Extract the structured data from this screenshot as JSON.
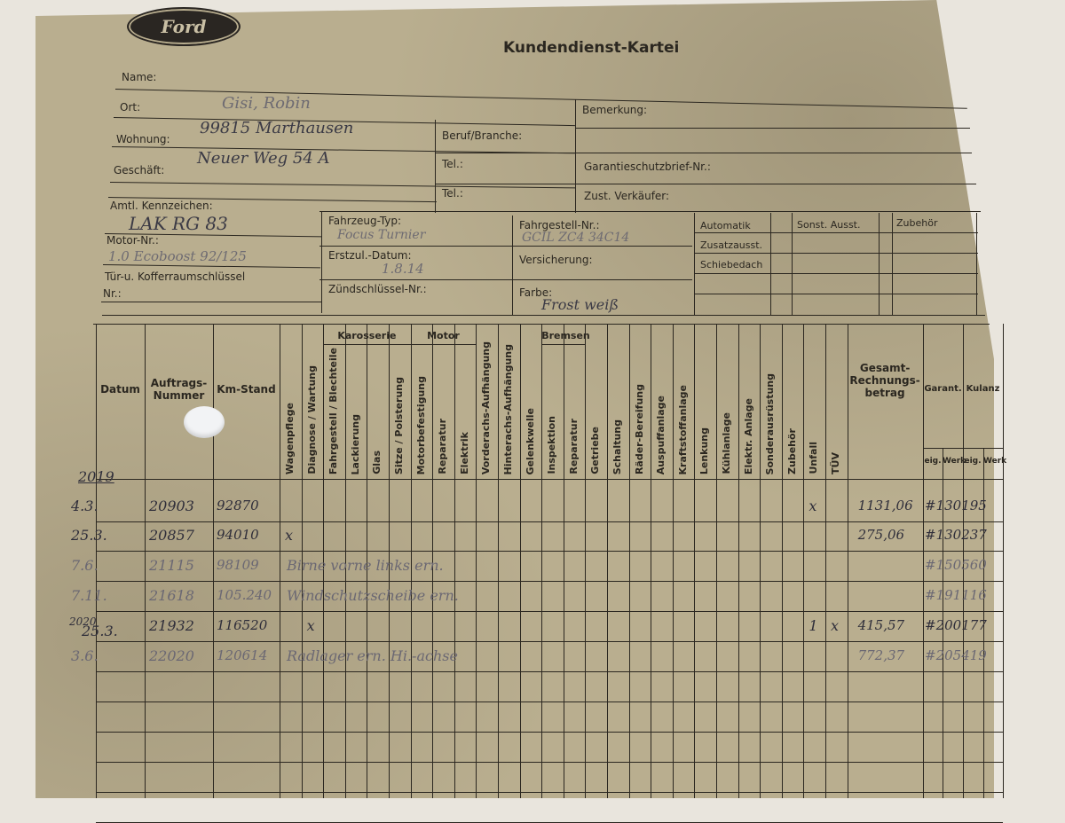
{
  "form": {
    "brand": "Ford",
    "title": "Kundendienst-Kartei",
    "labels": {
      "name": "Name:",
      "ort": "Ort:",
      "wohnung": "Wohnung:",
      "geschaeft": "Geschäft:",
      "beruf": "Beruf/Branche:",
      "tel1": "Tel.:",
      "tel2": "Tel.:",
      "bemerkung": "Bemerkung:",
      "garantie": "Garantieschutzbrief-Nr.:",
      "verkaeufer": "Zust. Verkäufer:",
      "kennzeichen": "Amtl. Kennzeichen:",
      "motor": "Motor-Nr.:",
      "schluessel": "Tür-u. Kofferraumschlüssel",
      "schluessel_nr": "Nr.:",
      "typ": "Fahrzeug-Typ:",
      "erstzul": "Erstzul.-Datum:",
      "zuend": "Zündschlüssel-Nr.:",
      "fahrgestell": "Fahrgestell-Nr.:",
      "versicherung": "Versicherung:",
      "farbe": "Farbe:",
      "automatik": "Automatik",
      "zusatz": "Zusatzausst.",
      "schiebedach": "Schiebedach",
      "sonst": "Sonst. Ausst.",
      "zubehoer": "Zubehör"
    },
    "values": {
      "name": "Gisi, Robin",
      "ort": "99815 Marthausen",
      "wohnung": "Neuer Weg 54 A",
      "kennzeichen": "LAK RG 83",
      "motor": "1.0 Ecoboost 92/125",
      "typ": "Focus Turnier",
      "erstzul": "1.8.14",
      "fahrgestell": "GCIL ZC4 34C14",
      "farbe": "Frost weiß"
    }
  },
  "table": {
    "headers": {
      "datum": "Datum",
      "auftrag": "Auftrags-Nummer",
      "km": "Km-Stand",
      "gesamt": "Gesamt-Rechnungs-betrag",
      "garant": "Garant.",
      "kulanz": "Kulanz",
      "eig1": "eig.",
      "werk1": "Werk",
      "eig2": "eig.",
      "werk2": "Werk"
    },
    "groups": [
      {
        "label": "Karosserie",
        "from": 2,
        "to": 5
      },
      {
        "label": "Motor",
        "from": 6,
        "to": 8
      },
      {
        "label": "Bremsen",
        "from": 12,
        "to": 13
      }
    ],
    "columns": [
      "Wagenpflege",
      "Diagnose / Wartung",
      "Fahrgestell / Blechteile",
      "Lackierung",
      "Glas",
      "Sitze / Polsterung",
      "Motorbefestigung",
      "Reparatur",
      "Elektrik",
      "Vorderachs-Aufhängung",
      "Hinterachs-Aufhängung",
      "Gelenkwelle",
      "Inspektion",
      "Reparatur",
      "Getriebe",
      "Schaltung",
      "Räder-Bereifung",
      "Auspuffanlage",
      "Kraftstoffanlage",
      "Lenkung",
      "Kühlanlage",
      "Elektr. Anlage",
      "Sonderausrüstung",
      "Zubehör",
      "Unfall",
      "TÜV"
    ],
    "year_marks": [
      "2019",
      "2020"
    ],
    "rows": [
      {
        "datum": "4.3.",
        "auftrag": "20903",
        "km": "92870",
        "marks": {
          "Unfall": "x"
        },
        "remark": "",
        "gesamt": "1131,06",
        "ref": "#130195"
      },
      {
        "datum": "25.3.",
        "auftrag": "20857",
        "km": "94010",
        "marks": {
          "Wagenpflege": "x"
        },
        "remark": "",
        "gesamt": "275,06",
        "ref": "#130237"
      },
      {
        "datum": "7.6.",
        "auftrag": "21115",
        "km": "98109",
        "marks": {},
        "remark": "Birne vorne links ern.",
        "gesamt": "",
        "ref": "#150560"
      },
      {
        "datum": "7.11.",
        "auftrag": "21618",
        "km": "105.240",
        "marks": {},
        "remark": "Windschutzscheibe ern.",
        "gesamt": "",
        "ref": "#191116"
      },
      {
        "datum": "25.3.",
        "auftrag": "21932",
        "km": "116520",
        "marks": {
          "Diagnose / Wartung": "x",
          "Unfall": "1",
          "TÜV": "x"
        },
        "remark": "",
        "gesamt": "415,57",
        "ref": "#200177"
      },
      {
        "datum": "3.6.",
        "auftrag": "22020",
        "km": "120614",
        "marks": {},
        "remark": "Radlager ern. Hi.-achse",
        "gesamt": "772,37",
        "ref": "#205419"
      }
    ]
  }
}
